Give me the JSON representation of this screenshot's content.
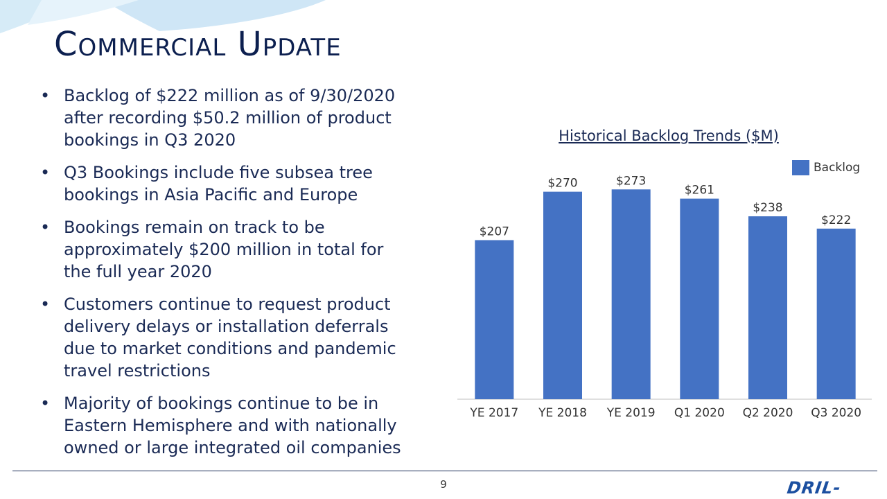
{
  "slide": {
    "title": "Commercial Update",
    "page_number": "9",
    "logo_text": "DRIL-QUIP",
    "bullet_icon": "•",
    "bullets": [
      "Backlog of $222 million as of 9/30/2020 after recording $50.2 million of product bookings in Q3 2020",
      "Q3 Bookings include five subsea tree bookings in Asia Pacific and Europe",
      "Bookings remain on track to be approximately $200 million in total for the full year 2020",
      "Customers continue to request product delivery delays or installation deferrals due to market conditions and pandemic travel restrictions",
      "Majority of bookings continue to be in Eastern Hemisphere and with nationally owned or large integrated oil companies"
    ]
  },
  "chart_data": {
    "type": "bar",
    "title": "Historical Backlog Trends ($M)",
    "categories": [
      "YE 2017",
      "YE 2018",
      "YE 2019",
      "Q1 2020",
      "Q2 2020",
      "Q3 2020"
    ],
    "series": [
      {
        "name": "Backlog",
        "values": [
          207,
          270,
          273,
          261,
          238,
          222
        ]
      }
    ],
    "data_labels": [
      "$207",
      "$270",
      "$273",
      "$261",
      "$238",
      "$222"
    ],
    "ylim": [
      0,
      285
    ],
    "grid": false,
    "legend": "top-right",
    "bar_color": "#4472c4"
  }
}
